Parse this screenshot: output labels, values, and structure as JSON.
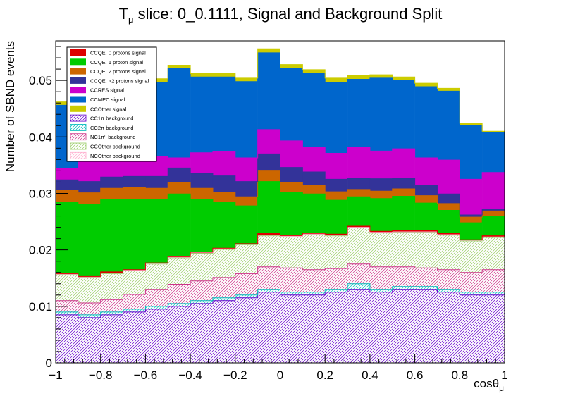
{
  "chart_data": {
    "type": "bar",
    "stacked": true,
    "title": {
      "prefix": "T",
      "subscript": "μ",
      "rest": " slice: 0_0.1111, Signal and Background Split"
    },
    "xlabel": {
      "main": "cosθ",
      "subscript": "μ"
    },
    "ylabel": "Number of SBND events",
    "xlim": [
      -1,
      1
    ],
    "ylim": [
      0,
      0.057
    ],
    "x_ticks": [
      -1,
      -0.8,
      -0.6,
      -0.4,
      -0.2,
      0,
      0.2,
      0.4,
      0.6,
      0.8,
      1
    ],
    "x_tick_labels": [
      "−1",
      "−0.8",
      "−0.6",
      "−0.4",
      "−0.2",
      "0",
      "0.2",
      "0.4",
      "0.6",
      "0.8",
      "1"
    ],
    "y_ticks": [
      0,
      0.01,
      0.02,
      0.03,
      0.04,
      0.05
    ],
    "y_tick_labels": [
      "0",
      "0.01",
      "0.02",
      "0.03",
      "0.04",
      "0.05"
    ],
    "grid": false,
    "legend_position": "top-left",
    "bin_edges": [
      -1,
      -0.9,
      -0.8,
      -0.7,
      -0.6,
      -0.5,
      -0.4,
      -0.3,
      -0.2,
      -0.1,
      0,
      0.1,
      0.2,
      0.3,
      0.4,
      0.5,
      0.6,
      0.7,
      0.8,
      0.9,
      1
    ],
    "stack_order": [
      "cc1pi_bg",
      "cc2pi_bg",
      "nc1pi0_bg",
      "ccother_bg",
      "ncother_bg",
      "ccqe0p",
      "ccqe1p",
      "ccqe2p",
      "ccqe3p",
      "ccres",
      "ccmec",
      "ccother"
    ],
    "series": [
      {
        "id": "ccqe0p",
        "name": "CCQE, 0 protons signal",
        "color": "#dd0000",
        "style": "solid",
        "values": [
          0.0001,
          0.0001,
          0.0002,
          0.0001,
          0.0001,
          0.0001,
          0.0001,
          0.0001,
          0.0001,
          0.0003,
          0.0002,
          0.0002,
          0.0002,
          0.0002,
          0.0002,
          0.0002,
          0.0002,
          0.0002,
          0.0001,
          0.0002
        ]
      },
      {
        "id": "ccqe1p",
        "name": "CCQE, 1 proton signal",
        "color": "#00cc00",
        "style": "solid",
        "values": [
          0.0127,
          0.0128,
          0.0128,
          0.0125,
          0.0112,
          0.0111,
          0.0093,
          0.0081,
          0.0067,
          0.0092,
          0.0076,
          0.0069,
          0.006,
          0.0052,
          0.0058,
          0.0061,
          0.0049,
          0.0041,
          0.003,
          0.0034
        ]
      },
      {
        "id": "ccqe2p",
        "name": "CCQE, 2 protons signal",
        "color": "#cc6600",
        "style": "solid",
        "values": [
          0.002,
          0.002,
          0.002,
          0.002,
          0.002,
          0.002,
          0.002,
          0.0018,
          0.0016,
          0.002,
          0.0018,
          0.0016,
          0.0015,
          0.0013,
          0.0013,
          0.0013,
          0.0013,
          0.0012,
          0.001,
          0.001
        ]
      },
      {
        "id": "ccqe3p",
        "name": "CCQE, >2 protons signal",
        "color": "#333399",
        "style": "solid",
        "values": [
          0.0019,
          0.002,
          0.002,
          0.002,
          0.0021,
          0.0026,
          0.0027,
          0.0029,
          0.0027,
          0.0029,
          0.0026,
          0.0023,
          0.0022,
          0.002,
          0.0022,
          0.0019,
          0.0019,
          0.0017,
          0.0004,
          0.0003
        ]
      },
      {
        "id": "ccres",
        "name": "CCRES signal",
        "color": "#cc00cc",
        "style": "solid",
        "values": [
          0.002,
          0.004,
          0.0035,
          0.0032,
          0.0036,
          0.0018,
          0.0036,
          0.0043,
          0.0042,
          0.0043,
          0.0047,
          0.0044,
          0.0046,
          0.0055,
          0.0049,
          0.0052,
          0.0048,
          0.006,
          0.0063,
          0.0065
        ]
      },
      {
        "id": "ccmec",
        "name": "CCMEC signal",
        "color": "#0066cc",
        "style": "solid",
        "values": [
          0.0112,
          0.0125,
          0.013,
          0.0135,
          0.0131,
          0.0158,
          0.0134,
          0.0132,
          0.0135,
          0.0136,
          0.0128,
          0.013,
          0.0126,
          0.012,
          0.0129,
          0.0121,
          0.0126,
          0.0122,
          0.0096,
          0.0071
        ]
      },
      {
        "id": "ccother",
        "name": "CCOther signal",
        "color": "#cccc00",
        "style": "solid",
        "values": [
          0.0006,
          0.0006,
          0.0006,
          0.0006,
          0.0006,
          0.0006,
          0.0006,
          0.0006,
          0.0006,
          0.0007,
          0.0007,
          0.0007,
          0.0007,
          0.0007,
          0.0006,
          0.0006,
          0.0006,
          0.0005,
          0.0003,
          0.0002
        ]
      },
      {
        "id": "cc1pi_bg",
        "name": "CC1π background",
        "color": "#6600cc",
        "style": "hatch",
        "values": [
          0.0085,
          0.008,
          0.0085,
          0.009,
          0.0095,
          0.01,
          0.0105,
          0.011,
          0.0115,
          0.0125,
          0.012,
          0.012,
          0.0125,
          0.013,
          0.0125,
          0.013,
          0.013,
          0.0125,
          0.012,
          0.012
        ]
      },
      {
        "id": "cc2pi_bg",
        "name": "CC2π background",
        "color": "#00bbbb",
        "style": "hatch",
        "values": [
          0.0005,
          0.0005,
          0.0005,
          0.0005,
          0.0005,
          0.0005,
          0.0005,
          0.0005,
          0.0005,
          0.0005,
          0.0005,
          0.0005,
          0.0005,
          0.001,
          0.0005,
          0.0005,
          0.0005,
          0.0005,
          0.0005,
          0.0005
        ]
      },
      {
        "id": "nc1pi0_bg",
        "name": "NC1π⁰ background",
        "color": "#cc3388",
        "style": "hatch",
        "values": [
          0.002,
          0.0021,
          0.0022,
          0.0026,
          0.003,
          0.0034,
          0.0035,
          0.0036,
          0.0038,
          0.004,
          0.0043,
          0.004,
          0.0037,
          0.0035,
          0.004,
          0.0035,
          0.0033,
          0.0035,
          0.0035,
          0.004
        ]
      },
      {
        "id": "ccother_bg",
        "name": "CCOther background",
        "color": "#99cc66",
        "style": "hatch",
        "values": [
          0.0046,
          0.0045,
          0.0046,
          0.0042,
          0.0045,
          0.0047,
          0.0049,
          0.005,
          0.0051,
          0.0055,
          0.0055,
          0.0062,
          0.0058,
          0.0064,
          0.006,
          0.0061,
          0.0063,
          0.0061,
          0.0056,
          0.0057
        ]
      },
      {
        "id": "ncother_bg",
        "name": "NCOther background",
        "color": "#ffaacc",
        "style": "hatch",
        "values": [
          0.0001,
          0.0001,
          0.0001,
          0.0001,
          0.0001,
          0.0001,
          0.0001,
          0.0001,
          0.0001,
          0.0001,
          0.0001,
          0.0001,
          0.0001,
          0.0001,
          0.0001,
          0.0001,
          0.0001,
          0.0001,
          0.0001,
          0.0001
        ]
      }
    ]
  }
}
